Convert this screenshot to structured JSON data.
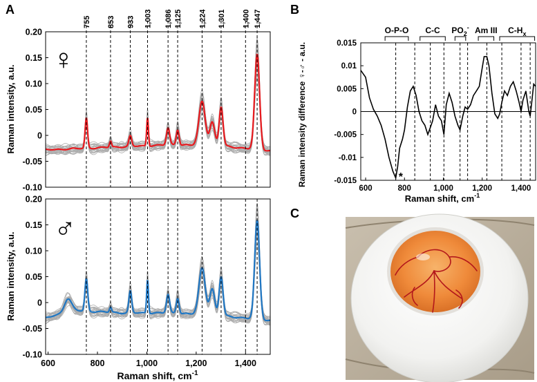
{
  "panels": [
    {
      "id": "A",
      "letter": "A",
      "type": "line",
      "xlabel": "Raman shift, cm",
      "xlabel_sup": "-1",
      "xlim": [
        590,
        1500
      ],
      "xticks": [
        {
          "v": 600,
          "label": "600"
        },
        {
          "v": 800,
          "label": "800"
        },
        {
          "v": 1000,
          "label": "1,000"
        },
        {
          "v": 1200,
          "label": "1,200"
        },
        {
          "v": 1400,
          "label": "1,400"
        }
      ],
      "peak_lines": [
        {
          "v": 755,
          "label": "755"
        },
        {
          "v": 853,
          "label": "853"
        },
        {
          "v": 933,
          "label": "933"
        },
        {
          "v": 1003,
          "label": "1,003"
        },
        {
          "v": 1086,
          "label": "1,086"
        },
        {
          "v": 1125,
          "label": "1,125"
        },
        {
          "v": 1224,
          "label": "1,224"
        },
        {
          "v": 1301,
          "label": "1,301"
        },
        {
          "v": 1400,
          "label": "1,400"
        },
        {
          "v": 1447,
          "label": "1,447"
        }
      ],
      "subplots": [
        {
          "name": "female",
          "symbol": "♀",
          "ylabel": "Raman intensity, a.u.",
          "ylim": [
            -0.1,
            0.2
          ],
          "yticks": [
            {
              "v": 0.2,
              "label": "0.20"
            },
            {
              "v": 0.15,
              "label": "0.15"
            },
            {
              "v": 0.1,
              "label": "0.10"
            },
            {
              "v": 0.05,
              "label": "0.05"
            },
            {
              "v": 0,
              "label": "0"
            },
            {
              "v": -0.05,
              "label": "-0.05"
            },
            {
              "v": -0.1,
              "label": "-0.10"
            }
          ],
          "mean_color": "#e8191e",
          "individual_color": "#aaaaaa",
          "baseline": [
            [
              590,
              -0.028
            ],
            [
              900,
              -0.022
            ],
            [
              1100,
              -0.018
            ],
            [
              1300,
              -0.02
            ],
            [
              1500,
              -0.03
            ]
          ],
          "peaks": [
            {
              "x": 755,
              "h": 0.058,
              "w": 7
            },
            {
              "x": 853,
              "h": 0.012,
              "w": 6
            },
            {
              "x": 933,
              "h": 0.02,
              "w": 8
            },
            {
              "x": 1003,
              "h": 0.055,
              "w": 5
            },
            {
              "x": 1086,
              "h": 0.032,
              "w": 9
            },
            {
              "x": 1125,
              "h": 0.03,
              "w": 8
            },
            {
              "x": 1224,
              "h": 0.085,
              "w": 18
            },
            {
              "x": 1265,
              "h": 0.045,
              "w": 14
            },
            {
              "x": 1301,
              "h": 0.075,
              "w": 11
            },
            {
              "x": 1447,
              "h": 0.183,
              "w": 14
            }
          ]
        },
        {
          "name": "male",
          "symbol": "♂",
          "ylabel": "Raman intensity, a.u.",
          "ylim": [
            -0.1,
            0.2
          ],
          "yticks": [
            {
              "v": 0.2,
              "label": "0.20"
            },
            {
              "v": 0.15,
              "label": "0.15"
            },
            {
              "v": 0.1,
              "label": "0.10"
            },
            {
              "v": 0.05,
              "label": "0.05"
            },
            {
              "v": 0,
              "label": "0"
            },
            {
              "v": -0.05,
              "label": "-0.05"
            },
            {
              "v": -0.1,
              "label": "-0.10"
            }
          ],
          "mean_color": "#1f77c4",
          "individual_color": "#aaaaaa",
          "baseline": [
            [
              590,
              -0.03
            ],
            [
              700,
              -0.015
            ],
            [
              900,
              -0.02
            ],
            [
              1100,
              -0.02
            ],
            [
              1300,
              -0.025
            ],
            [
              1500,
              -0.035
            ]
          ],
          "peaks": [
            {
              "x": 680,
              "h": 0.025,
              "w": 20
            },
            {
              "x": 755,
              "h": 0.062,
              "w": 8
            },
            {
              "x": 853,
              "h": 0.01,
              "w": 6
            },
            {
              "x": 933,
              "h": 0.042,
              "w": 8
            },
            {
              "x": 1003,
              "h": 0.065,
              "w": 5
            },
            {
              "x": 1086,
              "h": 0.035,
              "w": 9
            },
            {
              "x": 1125,
              "h": 0.03,
              "w": 8
            },
            {
              "x": 1224,
              "h": 0.09,
              "w": 18
            },
            {
              "x": 1265,
              "h": 0.05,
              "w": 14
            },
            {
              "x": 1301,
              "h": 0.075,
              "w": 11
            },
            {
              "x": 1447,
              "h": 0.19,
              "w": 14
            }
          ]
        }
      ]
    },
    {
      "id": "B",
      "letter": "B",
      "type": "line",
      "ylabel": "Raman intensity difference ♀-♂ - a.u.",
      "xlabel": "Raman shift, cm",
      "xlabel_sup": "-1",
      "xlim": [
        575,
        1475
      ],
      "ylim": [
        -0.015,
        0.015
      ],
      "xticks": [
        {
          "v": 600,
          "label": "600"
        },
        {
          "v": 800,
          "label": "800"
        },
        {
          "v": 1000,
          "label": "1,000"
        },
        {
          "v": 1200,
          "label": "1,200"
        },
        {
          "v": 1400,
          "label": "1,400"
        }
      ],
      "yticks": [
        {
          "v": 0.015,
          "label": "0.015"
        },
        {
          "v": 0.01,
          "label": "0.01"
        },
        {
          "v": 0.005,
          "label": "0.005"
        },
        {
          "v": 0,
          "label": "0"
        },
        {
          "v": -0.005,
          "label": "-0.005"
        },
        {
          "v": -0.01,
          "label": "-0.01"
        },
        {
          "v": -0.015,
          "label": "-0.015"
        }
      ],
      "dashed_lines": [
        755,
        853,
        933,
        1003,
        1086,
        1125,
        1224,
        1301,
        1400,
        1447
      ],
      "groups": [
        {
          "label": "O-P-O",
          "sub": "",
          "sup": "",
          "x1": 700,
          "x2": 820
        },
        {
          "label": "C-C",
          "sub": "",
          "sup": "",
          "x1": 880,
          "x2": 1010
        },
        {
          "label": "PO",
          "sub": "2",
          "sup": "-",
          "x1": 1060,
          "x2": 1115
        },
        {
          "label": "Am III",
          "sub": "",
          "sup": "",
          "x1": 1180,
          "x2": 1260
        },
        {
          "label": "C-H",
          "sub": "x",
          "sup": "",
          "x1": 1290,
          "x2": 1470
        }
      ],
      "annotation": "*",
      "annotation_x": 770,
      "series": {
        "name": "female minus male",
        "color": "#000000",
        "x": [
          575,
          600,
          620,
          640,
          660,
          680,
          700,
          720,
          740,
          755,
          765,
          775,
          790,
          800,
          815,
          830,
          845,
          860,
          875,
          890,
          905,
          920,
          933,
          945,
          960,
          975,
          990,
          1003,
          1015,
          1030,
          1045,
          1060,
          1075,
          1086,
          1100,
          1112,
          1125,
          1140,
          1155,
          1170,
          1185,
          1200,
          1210,
          1224,
          1235,
          1250,
          1265,
          1280,
          1290,
          1301,
          1315,
          1330,
          1345,
          1360,
          1375,
          1390,
          1400,
          1410,
          1425,
          1440,
          1447,
          1455,
          1465,
          1475
        ],
        "y": [
          0.009,
          0.0075,
          0.003,
          0.0005,
          -0.001,
          -0.003,
          -0.006,
          -0.01,
          -0.013,
          -0.0145,
          -0.012,
          -0.008,
          -0.006,
          -0.004,
          0.001,
          0.0045,
          0.0055,
          0.0035,
          0.0,
          -0.002,
          -0.003,
          -0.005,
          -0.0035,
          -0.002,
          0.0015,
          -0.001,
          -0.002,
          -0.005,
          0.0015,
          0.004,
          0.002,
          -0.001,
          -0.003,
          -0.004,
          -0.001,
          0.001,
          0.0005,
          0.0015,
          0.0035,
          0.0045,
          0.0055,
          0.0095,
          0.012,
          0.012,
          0.01,
          0.004,
          -0.0005,
          -0.0015,
          -0.0005,
          0.002,
          0.0045,
          0.0035,
          0.0055,
          0.0065,
          0.0045,
          0.002,
          0.0,
          0.0025,
          0.0045,
          0.0,
          -0.001,
          0.002,
          0.006,
          0.0055
        ]
      }
    },
    {
      "id": "C",
      "letter": "C",
      "type": "photo",
      "description_hidden": true
    }
  ]
}
